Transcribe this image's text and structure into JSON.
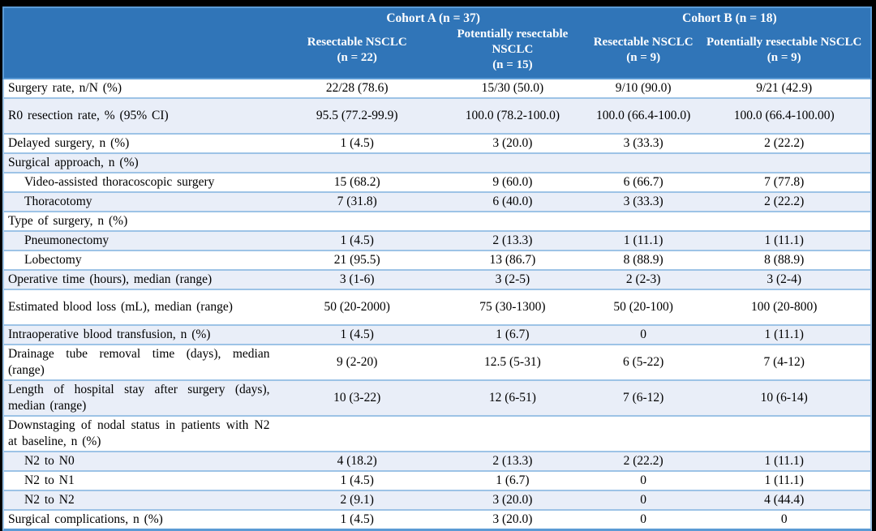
{
  "table": {
    "header": {
      "cohort_a": "Cohort A (n = 37)",
      "cohort_b": "Cohort B (n = 18)",
      "columns": [
        {
          "name": "Resectable NSCLC",
          "n": "(n = 22)"
        },
        {
          "name": "Potentially resectable NSCLC",
          "n": "(n = 15)"
        },
        {
          "name": "Resectable NSCLC",
          "n": "(n = 9)"
        },
        {
          "name": "Potentially resectable NSCLC",
          "n": "(n = 9)"
        }
      ]
    },
    "rows": [
      {
        "label": "Surgery rate, n/N (%)",
        "indent": false,
        "tall": false,
        "values": [
          "22/28 (78.6)",
          "15/30 (50.0)",
          "9/10 (90.0)",
          "9/21 (42.9)"
        ]
      },
      {
        "label": "R0 resection rate, % (95% CI)",
        "indent": false,
        "tall": true,
        "values": [
          "95.5 (77.2-99.9)",
          "100.0 (78.2-100.0)",
          "100.0 (66.4-100.0)",
          "100.0 (66.4-100.00)"
        ]
      },
      {
        "label": "Delayed surgery, n (%)",
        "indent": false,
        "tall": false,
        "values": [
          "1 (4.5)",
          "3 (20.0)",
          "3 (33.3)",
          "2 (22.2)"
        ]
      },
      {
        "label": "Surgical approach, n (%)",
        "indent": false,
        "tall": false,
        "values": [
          "",
          "",
          "",
          ""
        ]
      },
      {
        "label": "Video-assisted thoracoscopic surgery",
        "indent": true,
        "tall": false,
        "values": [
          "15 (68.2)",
          "9 (60.0)",
          "6 (66.7)",
          "7 (77.8)"
        ]
      },
      {
        "label": "Thoracotomy",
        "indent": true,
        "tall": false,
        "values": [
          "7 (31.8)",
          "6 (40.0)",
          "3 (33.3)",
          "2 (22.2)"
        ]
      },
      {
        "label": "Type of surgery, n (%)",
        "indent": false,
        "tall": false,
        "values": [
          "",
          "",
          "",
          ""
        ]
      },
      {
        "label": "Pneumonectomy",
        "indent": true,
        "tall": false,
        "values": [
          "1 (4.5)",
          "2 (13.3)",
          "1 (11.1)",
          "1 (11.1)"
        ]
      },
      {
        "label": "Lobectomy",
        "indent": true,
        "tall": false,
        "values": [
          "21 (95.5)",
          "13 (86.7)",
          "8 (88.9)",
          "8 (88.9)"
        ]
      },
      {
        "label": "Operative time (hours), median (range)",
        "indent": false,
        "tall": false,
        "values": [
          "3 (1-6)",
          "3 (2-5)",
          "2 (2-3)",
          "3 (2-4)"
        ]
      },
      {
        "label": "Estimated blood loss (mL), median (range)",
        "indent": false,
        "tall": true,
        "values": [
          "50 (20-2000)",
          "75 (30-1300)",
          "50 (20-100)",
          "100 (20-800)"
        ]
      },
      {
        "label": "Intraoperative blood transfusion, n (%)",
        "indent": false,
        "tall": false,
        "values": [
          "1 (4.5)",
          "1 (6.7)",
          "0",
          "1 (11.1)"
        ]
      },
      {
        "label": "Drainage tube removal time (days), median (range)",
        "indent": false,
        "tall": false,
        "values": [
          "9 (2-20)",
          "12.5 (5-31)",
          "6 (5-22)",
          "7 (4-12)"
        ]
      },
      {
        "label": "Length of hospital stay after surgery (days), median (range)",
        "indent": false,
        "tall": false,
        "values": [
          "10 (3-22)",
          "12 (6-51)",
          "7 (6-12)",
          "10 (6-14)"
        ]
      },
      {
        "label": "Downstaging of nodal status in patients with N2 at baseline, n (%)",
        "indent": false,
        "tall": false,
        "values": [
          "",
          "",
          "",
          ""
        ]
      },
      {
        "label": "N2 to N0",
        "indent": true,
        "tall": false,
        "values": [
          "4 (18.2)",
          "2 (13.3)",
          "2 (22.2)",
          "1 (11.1)"
        ]
      },
      {
        "label": "N2 to N1",
        "indent": true,
        "tall": false,
        "values": [
          "1 (4.5)",
          "1 (6.7)",
          "0",
          "1 (11.1)"
        ]
      },
      {
        "label": "N2 to N2",
        "indent": true,
        "tall": false,
        "values": [
          "2 (9.1)",
          "3 (20.0)",
          "0",
          "4 (44.4)"
        ]
      },
      {
        "label": "Surgical complications, n (%)",
        "indent": false,
        "tall": false,
        "values": [
          "1 (4.5)",
          "3 (20.0)",
          "0",
          "0"
        ]
      }
    ],
    "colors": {
      "header_bg": "#3075b8",
      "header_border": "#5b9bd5",
      "shaded_row": "#e9eef8",
      "row_border": "#9dc3e6",
      "bottom_border": "#5b9bd5",
      "header_text": "#ffffff",
      "body_text": "#000000"
    }
  }
}
